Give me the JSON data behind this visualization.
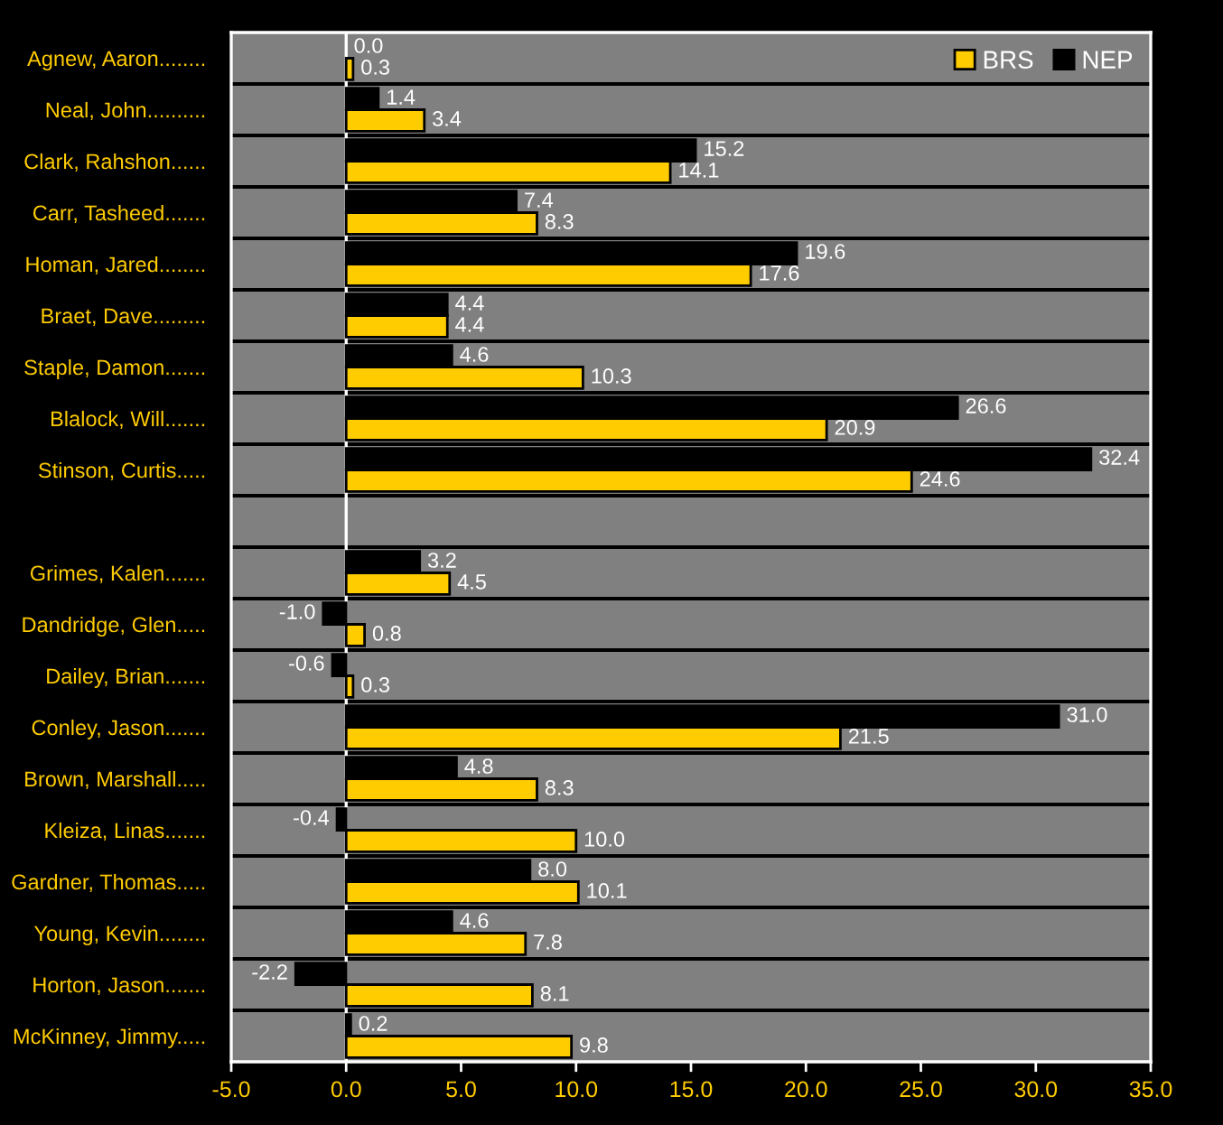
{
  "chart_data": {
    "type": "bar",
    "orientation": "horizontal",
    "categories": [
      "Agnew, Aaron........",
      "Neal, John..........",
      "Clark, Rahshon......",
      "Carr, Tasheed.......",
      "Homan, Jared........",
      "Braet, Dave.........",
      "Staple, Damon.......",
      "Blalock, Will.......",
      "Stinson, Curtis.....",
      null,
      "Grimes, Kalen.......",
      "Dandridge, Glen.....",
      "Dailey, Brian.......",
      "Conley, Jason.......",
      "Brown, Marshall.....",
      "Kleiza, Linas.......",
      "Gardner, Thomas.....",
      "Young, Kevin........",
      "Horton, Jason.......",
      "McKinney, Jimmy....."
    ],
    "series": [
      {
        "name": "BRS",
        "color": "#ffcc00",
        "values": [
          0.3,
          3.4,
          14.1,
          8.3,
          17.6,
          4.4,
          10.3,
          20.9,
          24.6,
          null,
          4.5,
          0.8,
          0.3,
          21.5,
          8.3,
          10.0,
          10.1,
          7.8,
          8.1,
          9.8
        ],
        "value_labels": [
          "0.3",
          "3.4",
          "14.1",
          "8.3",
          "17.6",
          "4.4",
          "10.3",
          "20.9",
          "24.6",
          null,
          "4.5",
          "0.8",
          "0.3",
          "21.5",
          "8.3",
          "10.0",
          "10.1",
          "7.8",
          "8.1",
          "9.8"
        ]
      },
      {
        "name": "NEP",
        "color": "#000000",
        "values": [
          0.0,
          1.4,
          15.2,
          7.4,
          19.6,
          4.4,
          4.6,
          26.6,
          32.4,
          null,
          3.2,
          -1.0,
          -0.6,
          31.0,
          4.8,
          -0.4,
          8.0,
          4.6,
          -2.2,
          0.2
        ],
        "value_labels": [
          "0.0",
          "1.4",
          "15.2",
          "7.4",
          "19.6",
          "4.4",
          "4.6",
          "26.6",
          "32.4",
          null,
          "3.2",
          "-1.0",
          "-0.6",
          "31.0",
          "4.8",
          "-0.4",
          "8.0",
          "4.6",
          "-2.2",
          "0.2"
        ]
      }
    ],
    "xlim": [
      -5,
      35
    ],
    "xticks": [
      {
        "value": -5,
        "label": "-5.0"
      },
      {
        "value": 0,
        "label": "0.0"
      },
      {
        "value": 5,
        "label": "5.0"
      },
      {
        "value": 10,
        "label": "10.0"
      },
      {
        "value": 15,
        "label": "15.0"
      },
      {
        "value": 20,
        "label": "20.0"
      },
      {
        "value": 25,
        "label": "25.0"
      },
      {
        "value": 30,
        "label": "30.0"
      },
      {
        "value": 35,
        "label": "35.0"
      }
    ],
    "grid": "y",
    "legend": "top right",
    "ref_lines": [
      {
        "axis": "x",
        "value": 0,
        "color": "#ffffff"
      }
    ]
  }
}
